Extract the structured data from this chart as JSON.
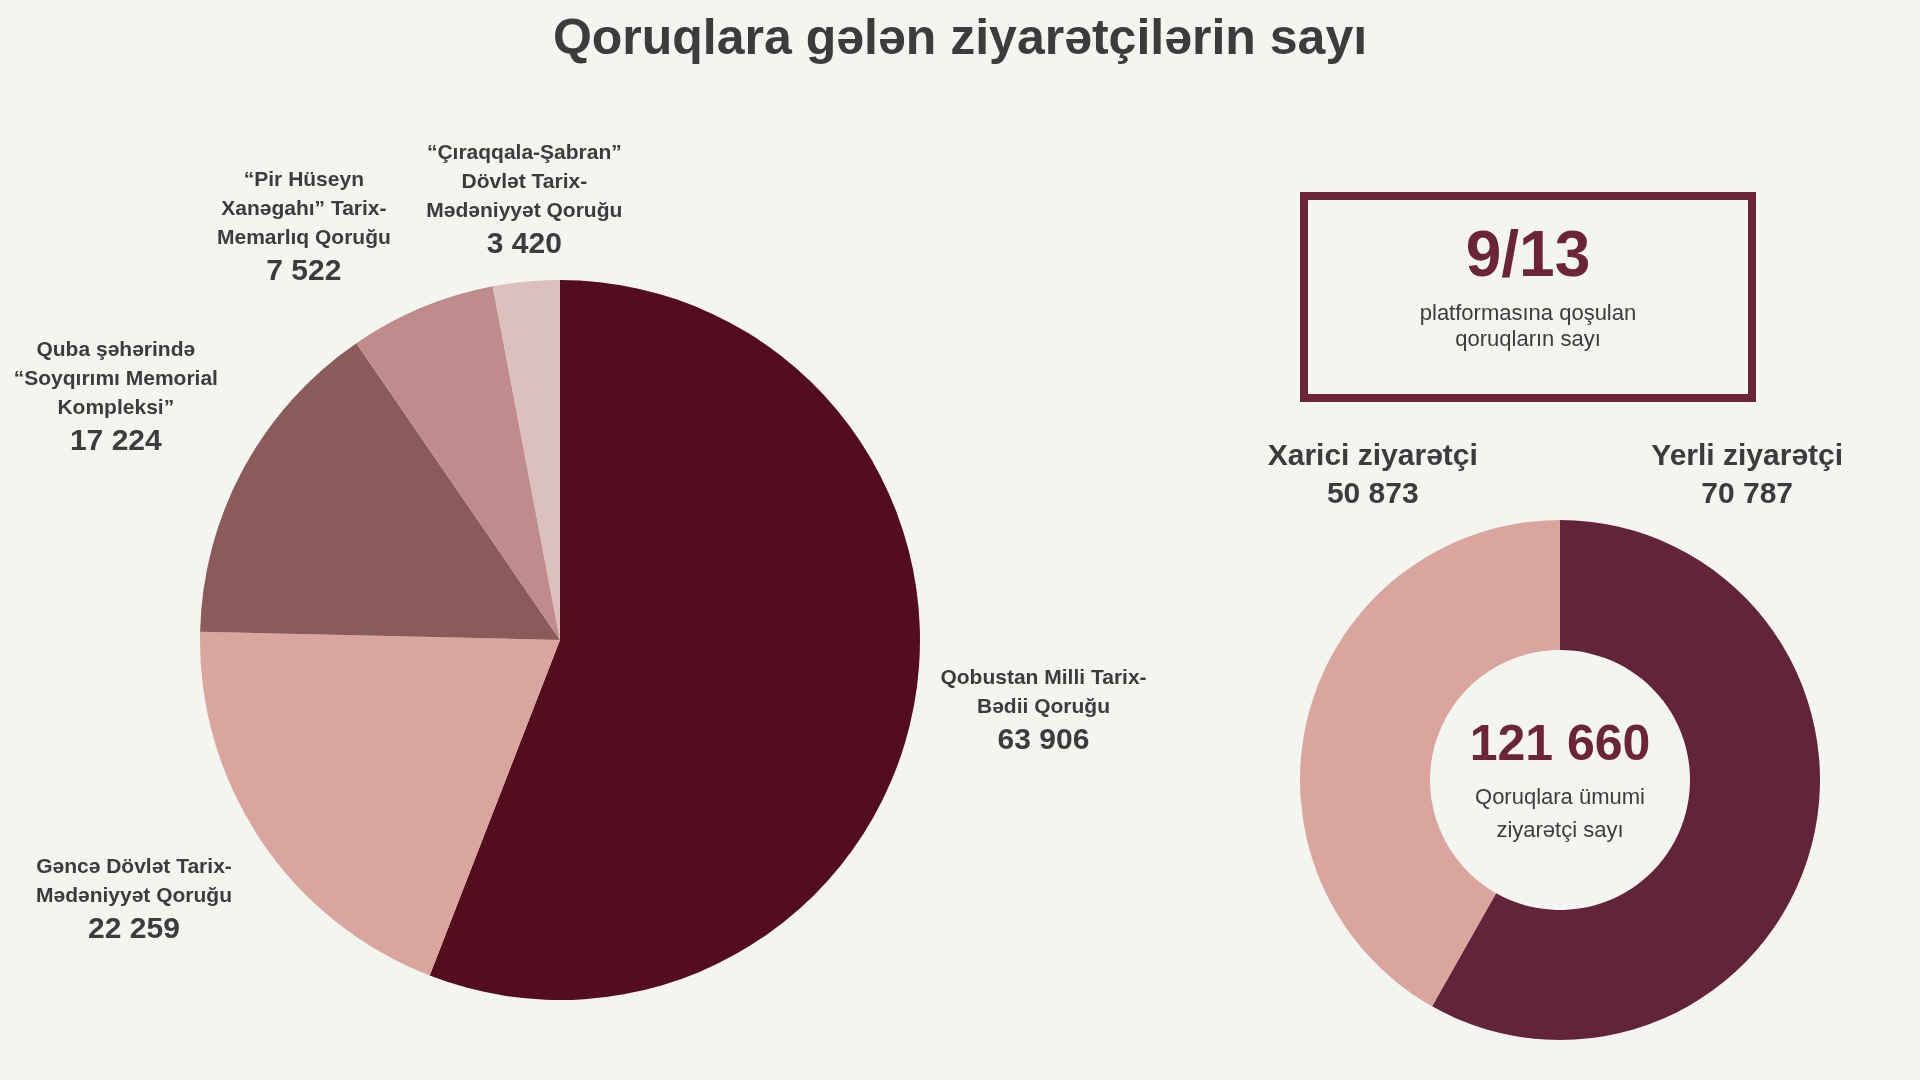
{
  "chart_data": [
    {
      "type": "pie",
      "title": "Qoruqlara gələn ziyarətçilərin sayı",
      "categories": [
        "Qobustan Milli Tarix-Bədii Qoruğu",
        "Gəncə Dövlət Tarix-Mədəniyyət Qoruğu",
        "Quba şəhərində “Soyqırımı Memorial Kompleksi”",
        "“Pir Hüseyn Xanəgahı” Tarix-Memarlıq Qoruğu",
        "“Çıraqqala-Şabran” Dövlət Tarix-Mədəniyyət Qoruğu"
      ],
      "values": [
        63906,
        22259,
        17224,
        7522,
        3420
      ],
      "value_labels": [
        "63 906",
        "22 259",
        "17 224",
        "7 522",
        "3 420"
      ],
      "colors": [
        "#540d1e",
        "#d9a59c",
        "#8a5b5a",
        "#c08c8b",
        "#dcc0bd"
      ]
    },
    {
      "type": "donut",
      "categories": [
        "Yerli ziyarətçi",
        "Xarici ziyarətçi"
      ],
      "values": [
        70787,
        50873
      ],
      "value_labels": [
        "70 787",
        "50 873"
      ],
      "colors": [
        "#63233a",
        "#d9a59c"
      ],
      "annotations": [
        "121 660",
        "Qoruqlara ümumi ziyarətçi sayı"
      ]
    },
    {
      "type": "other",
      "annotations": [
        "9/13",
        "platformasına qoşulan qoruqların sayı"
      ]
    }
  ]
}
